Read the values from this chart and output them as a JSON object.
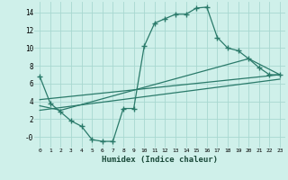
{
  "xlabel": "Humidex (Indice chaleur)",
  "background_color": "#cff0ea",
  "grid_color": "#a8d8d0",
  "line_color": "#2a7a6a",
  "xlim": [
    -0.5,
    23.5
  ],
  "ylim": [
    -1.2,
    15.2
  ],
  "xticks": [
    0,
    1,
    2,
    3,
    4,
    5,
    6,
    7,
    8,
    9,
    10,
    11,
    12,
    13,
    14,
    15,
    16,
    17,
    18,
    19,
    20,
    21,
    22,
    23
  ],
  "yticks": [
    0,
    2,
    4,
    6,
    8,
    10,
    12,
    14
  ],
  "ytick_labels": [
    "-0",
    "2",
    "4",
    "6",
    "8",
    "10",
    "12",
    "14"
  ],
  "series1_x": [
    0,
    1,
    2,
    3,
    4,
    5,
    6,
    7,
    8,
    9,
    10,
    11,
    12,
    13,
    14,
    15,
    16,
    17,
    18,
    19,
    20,
    21,
    22,
    23
  ],
  "series1_y": [
    6.8,
    3.8,
    2.8,
    1.8,
    1.2,
    -0.3,
    -0.5,
    -0.5,
    3.2,
    3.2,
    10.2,
    12.8,
    13.3,
    13.8,
    13.8,
    14.5,
    14.6,
    11.2,
    10.0,
    9.7,
    8.8,
    7.8,
    7.0,
    7.0
  ],
  "series2_x": [
    0,
    23
  ],
  "series2_y": [
    4.2,
    7.0
  ],
  "series3_x": [
    0,
    23
  ],
  "series3_y": [
    3.0,
    6.5
  ],
  "series4_x": [
    0,
    2,
    20,
    23
  ],
  "series4_y": [
    3.5,
    3.0,
    8.8,
    7.0
  ],
  "marker": "+",
  "markersize": 4,
  "markeredgewidth": 1.0,
  "linewidth": 0.9
}
